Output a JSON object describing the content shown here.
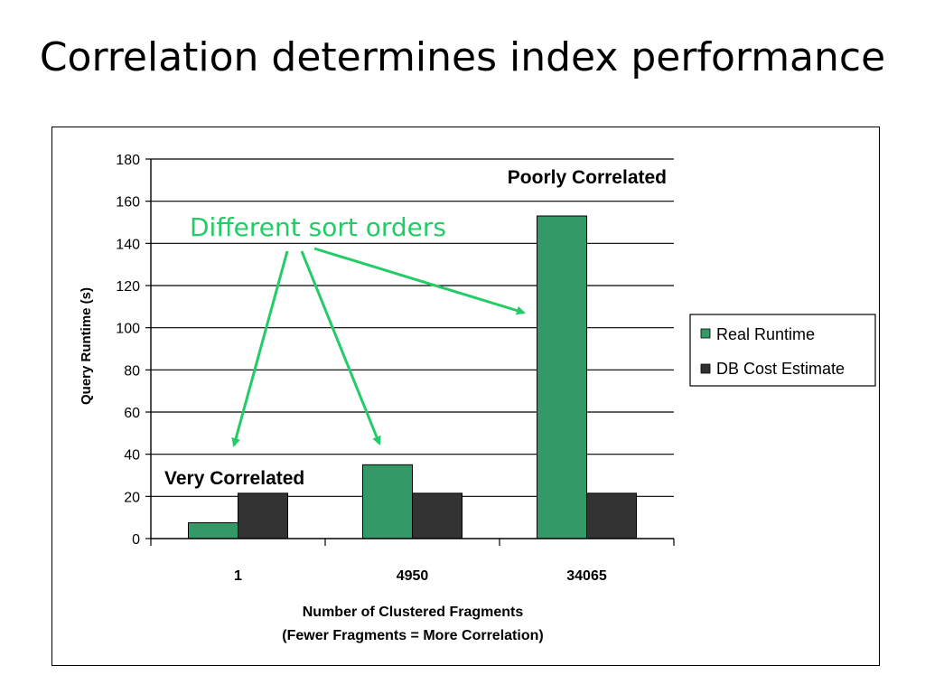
{
  "slide": {
    "title": "Correlation determines index performance"
  },
  "chart_data": {
    "type": "bar",
    "title": "",
    "categories": [
      "1",
      "4950",
      "34065"
    ],
    "series": [
      {
        "name": "Real Runtime",
        "color": "#339966",
        "values": [
          7.5,
          35,
          153
        ]
      },
      {
        "name": "DB Cost Estimate",
        "color": "#333333",
        "values": [
          21.5,
          21.5,
          21.5
        ]
      }
    ],
    "ylabel": "Query Runtime (s)",
    "xlabel": "Number of Clustered Fragments",
    "xlabel_line2": "(Fewer Fragments = More Correlation)",
    "ylim": [
      0,
      180
    ],
    "yticks": [
      0,
      20,
      40,
      60,
      80,
      100,
      120,
      140,
      160,
      180
    ],
    "grid": true,
    "legend_position": "right",
    "annotations": {
      "poorly_correlated": "Poorly Correlated",
      "very_correlated": "Very Correlated",
      "different_sort_orders": "Different sort orders",
      "arrow_color": "#22CC66"
    }
  }
}
